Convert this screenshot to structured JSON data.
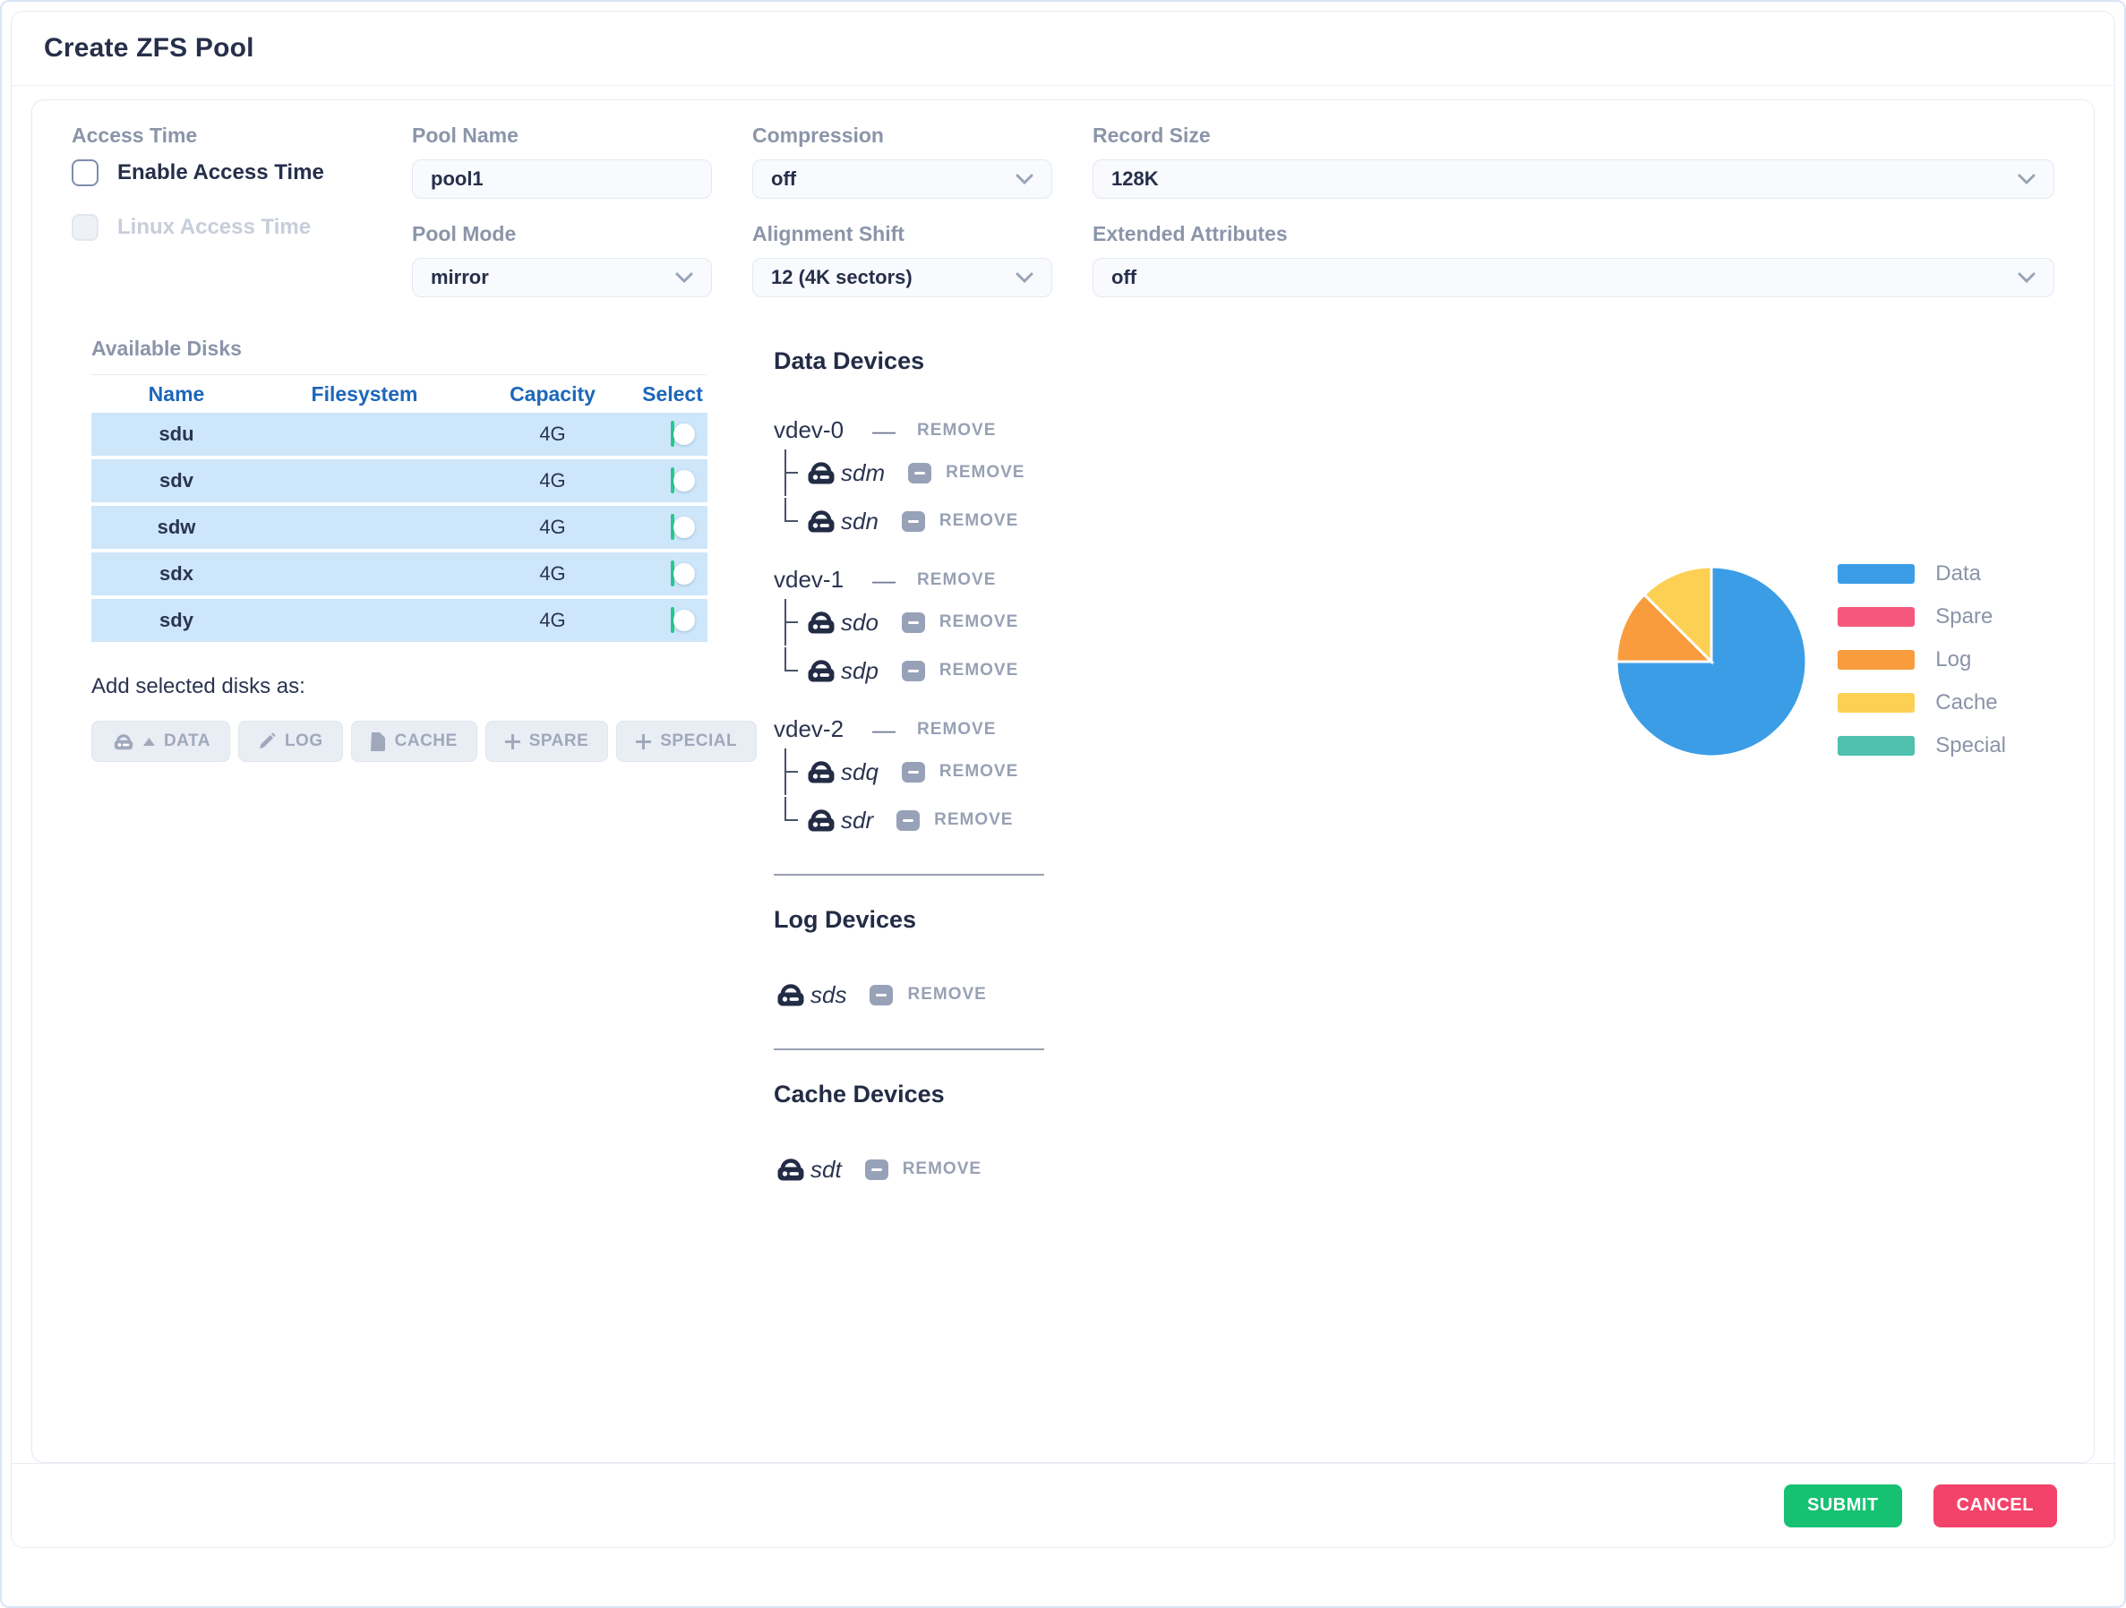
{
  "header": {
    "title": "Create ZFS Pool"
  },
  "form": {
    "pool_name": {
      "label": "Pool Name",
      "value": "pool1"
    },
    "compression": {
      "label": "Compression",
      "value": "off"
    },
    "record_size": {
      "label": "Record Size",
      "value": "128K"
    },
    "access_time": {
      "label": "Access Time",
      "enable": "Enable Access Time",
      "linux": "Linux Access Time"
    },
    "pool_mode": {
      "label": "Pool Mode",
      "value": "mirror"
    },
    "alignment_shift": {
      "label": "Alignment Shift",
      "value": "12 (4K sectors)"
    },
    "extended_attributes": {
      "label": "Extended Attributes",
      "value": "off"
    }
  },
  "available_disks": {
    "label": "Available Disks",
    "columns": [
      "Name",
      "Filesystem",
      "Capacity",
      "Select"
    ],
    "rows": [
      {
        "name": "sdu",
        "filesystem": "",
        "capacity": "4G",
        "selected": false
      },
      {
        "name": "sdv",
        "filesystem": "",
        "capacity": "4G",
        "selected": false
      },
      {
        "name": "sdw",
        "filesystem": "",
        "capacity": "4G",
        "selected": false
      },
      {
        "name": "sdx",
        "filesystem": "",
        "capacity": "4G",
        "selected": false
      },
      {
        "name": "sdy",
        "filesystem": "",
        "capacity": "4G",
        "selected": false
      }
    ]
  },
  "add_as": {
    "label": "Add selected disks as:",
    "buttons": [
      {
        "id": "data",
        "label": "DATA",
        "icon": "disk-caret-up-icon"
      },
      {
        "id": "log",
        "label": "LOG",
        "icon": "pencil-icon"
      },
      {
        "id": "cache",
        "label": "CACHE",
        "icon": "file-icon"
      },
      {
        "id": "spare",
        "label": "SPARE",
        "icon": "plus-icon"
      },
      {
        "id": "special",
        "label": "SPECIAL",
        "icon": "plus-icon"
      }
    ]
  },
  "devices": {
    "remove_label": "REMOVE",
    "data": {
      "title": "Data Devices",
      "vdevs": [
        {
          "name": "vdev-0",
          "disks": [
            "sdm",
            "sdn"
          ]
        },
        {
          "name": "vdev-1",
          "disks": [
            "sdo",
            "sdp"
          ]
        },
        {
          "name": "vdev-2",
          "disks": [
            "sdq",
            "sdr"
          ]
        }
      ]
    },
    "log": {
      "title": "Log Devices",
      "disks": [
        "sds"
      ]
    },
    "cache": {
      "title": "Cache Devices",
      "disks": [
        "sdt"
      ]
    }
  },
  "chart_data": {
    "type": "pie",
    "labels": [
      "Data",
      "Spare",
      "Log",
      "Cache",
      "Special"
    ],
    "values": [
      75,
      0,
      12.5,
      12.5,
      0
    ],
    "unit": "percent of pool devices",
    "colors": [
      "#3b9de6",
      "#f6577d",
      "#f89c3d",
      "#fcd053",
      "#4ec0ad"
    ],
    "legend_position": "right",
    "start_angle": "top",
    "direction": "clockwise"
  },
  "footer": {
    "submit": "SUBMIT",
    "cancel": "CANCEL"
  }
}
